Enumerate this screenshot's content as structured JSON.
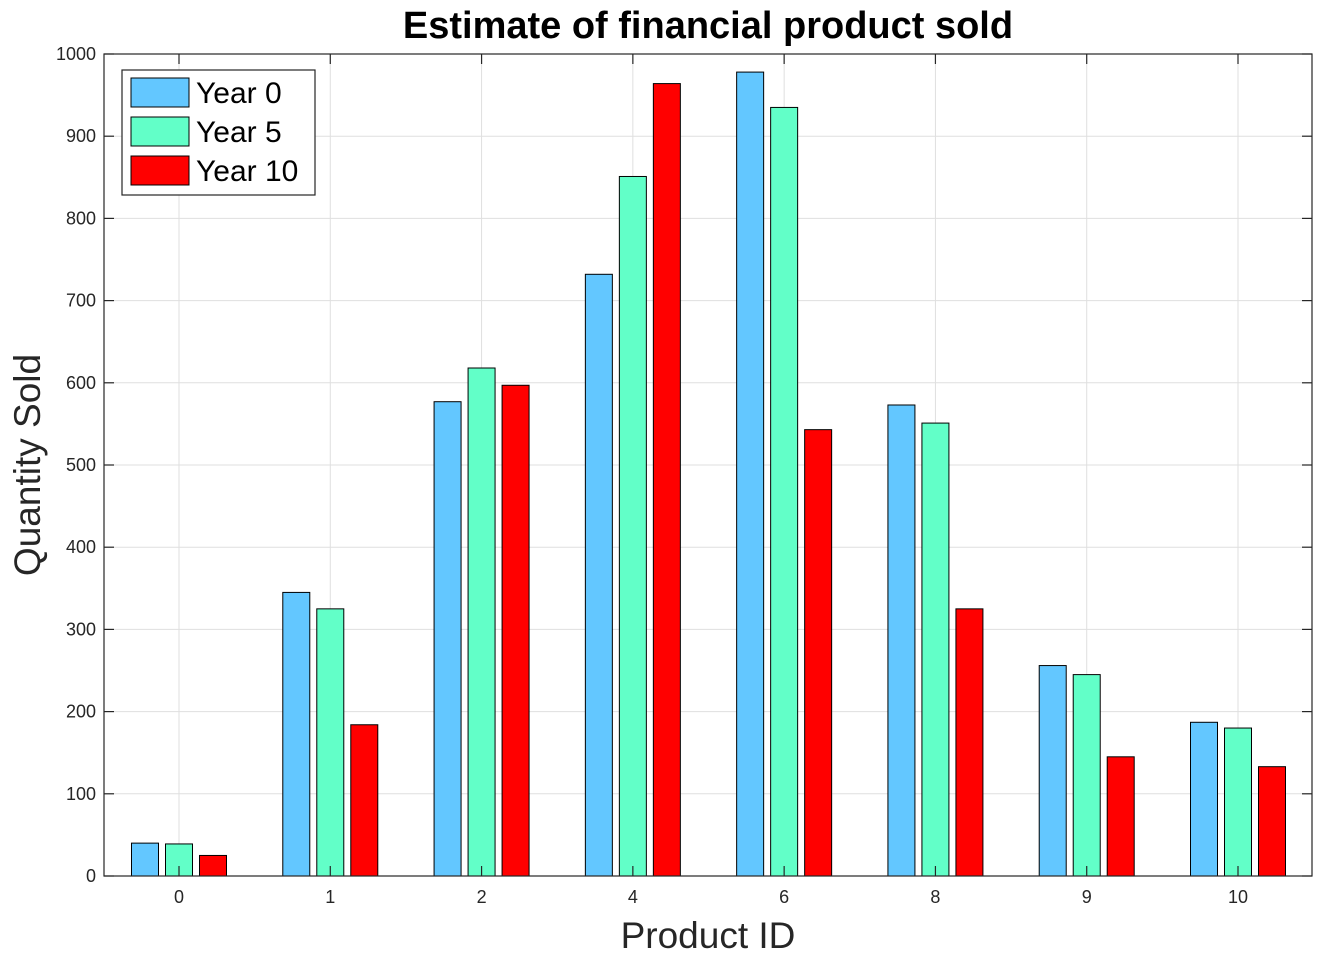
{
  "chart_data": {
    "type": "bar",
    "title": "Estimate of financial product sold",
    "xlabel": "Product ID",
    "ylabel": "Quantity Sold",
    "categories": [
      "0",
      "1",
      "2",
      "4",
      "6",
      "8",
      "9",
      "10"
    ],
    "series": [
      {
        "name": "Year 0",
        "color": "#63c7ff",
        "values": [
          40,
          345,
          577,
          732,
          978,
          573,
          256,
          187
        ]
      },
      {
        "name": "Year 5",
        "color": "#62ffc8",
        "values": [
          39,
          325,
          618,
          851,
          935,
          551,
          245,
          180
        ]
      },
      {
        "name": "Year 10",
        "color": "#ff0000",
        "values": [
          25,
          184,
          597,
          964,
          543,
          325,
          145,
          133
        ]
      }
    ],
    "ylim": [
      0,
      1000
    ],
    "yticks": [
      0,
      100,
      200,
      300,
      400,
      500,
      600,
      700,
      800,
      900,
      1000
    ],
    "grid": true,
    "legend_position": "top-left"
  }
}
